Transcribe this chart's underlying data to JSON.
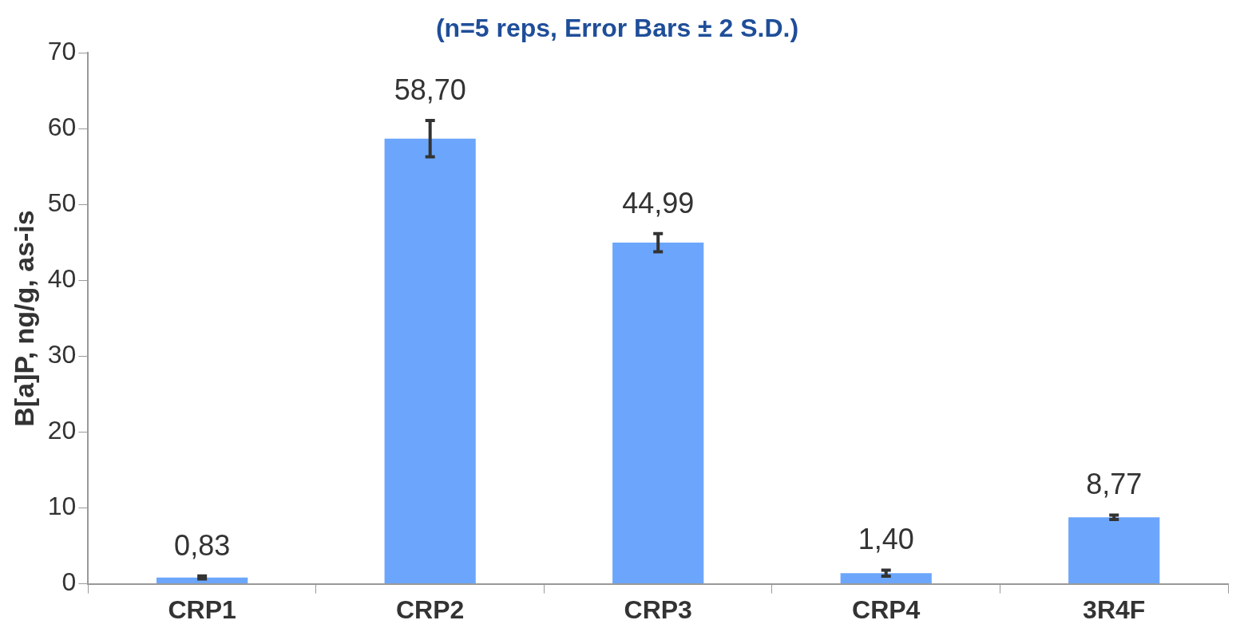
{
  "chart_data": {
    "type": "bar",
    "title": "(n=5 reps, Error Bars ± 2 S.D.)",
    "ylabel": "B[a]P, ng/g, as-is",
    "categories": [
      "CRP1",
      "CRP2",
      "CRP3",
      "CRP4",
      "3R4F"
    ],
    "values": [
      0.83,
      58.7,
      44.99,
      1.4,
      8.77
    ],
    "value_labels": [
      "0,83",
      "58,70",
      "44,99",
      "1,40",
      "8,77"
    ],
    "errors": [
      0.2,
      2.4,
      1.2,
      0.4,
      0.3
    ],
    "color": "#6ca6fc",
    "ylim": [
      0,
      70
    ],
    "yticks": [
      0,
      10,
      20,
      30,
      40,
      50,
      60,
      70
    ],
    "grid": false,
    "legend": false
  }
}
